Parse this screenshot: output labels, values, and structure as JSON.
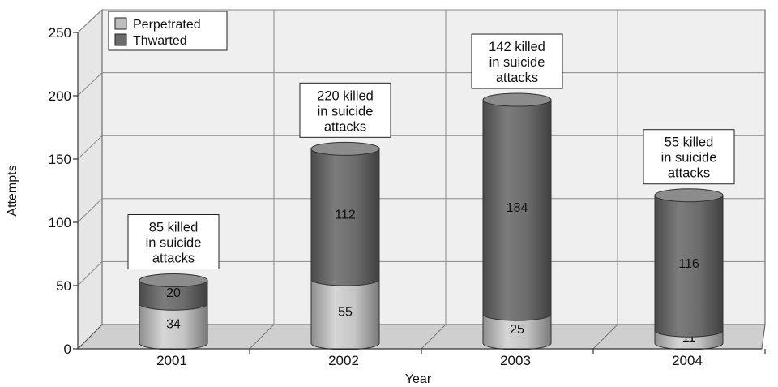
{
  "chart_data": {
    "type": "bar",
    "stacked": true,
    "style": "3d-cylinder",
    "xlabel": "Year",
    "ylabel": "Attempts",
    "ylim": [
      0,
      250
    ],
    "yticks": [
      0,
      50,
      100,
      150,
      200,
      250
    ],
    "categories": [
      "2001",
      "2002",
      "2003",
      "2004"
    ],
    "series": [
      {
        "name": "Perpetrated",
        "values": [
          34,
          55,
          25,
          11
        ],
        "color": "#bdbdbd"
      },
      {
        "name": "Thwarted",
        "values": [
          20,
          112,
          184,
          116
        ],
        "color": "#6b6b6b"
      }
    ],
    "annotations": [
      {
        "category": "2001",
        "lines": [
          "85 killed",
          "in suicide",
          "attacks"
        ]
      },
      {
        "category": "2002",
        "lines": [
          "220 killed",
          "in suicide",
          "attacks"
        ]
      },
      {
        "category": "2003",
        "lines": [
          "142 killed",
          "in suicide",
          "attacks"
        ]
      },
      {
        "category": "2004",
        "lines": [
          "55 killed",
          "in suicide",
          "attacks"
        ]
      }
    ],
    "legend_position": "top-left",
    "grid": true
  }
}
